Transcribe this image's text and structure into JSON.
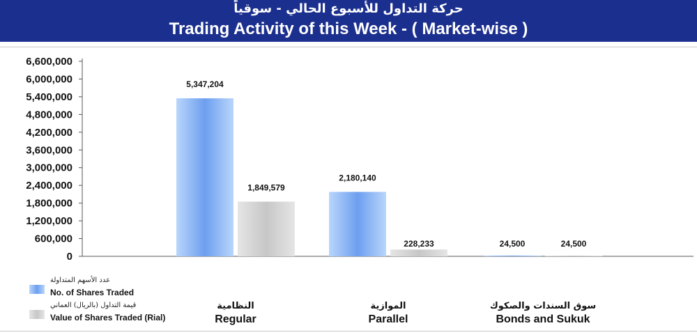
{
  "header": {
    "title_ar": "حركة التداول للأسبوع الحالي - سوقياً",
    "title_en": "Trading Activity of this Week - ( Market-wise )"
  },
  "chart_data": {
    "type": "bar",
    "categories": [
      "Regular",
      "Parallel",
      "Bonds and Sukuk"
    ],
    "categories_ar": [
      "النظامية",
      "الموازية",
      "سوق السندات والصكوك"
    ],
    "series": [
      {
        "name": "No. of Shares Traded",
        "name_ar": "عدد الأسهم المتداولة",
        "values": [
          5347204,
          2180140,
          24500
        ],
        "labels": [
          "5,347,204",
          "2,180,140",
          "24,500"
        ],
        "color": "#7eaef0"
      },
      {
        "name": "Value of Shares Traded (Rial)",
        "name_ar": "قيمة التداول (بالريال) العماني",
        "values": [
          1849579,
          228233,
          24500
        ],
        "labels": [
          "1,849,579",
          "228,233",
          "24,500"
        ],
        "color": "#cfd0cf"
      }
    ],
    "ylim": [
      0,
      6600000
    ],
    "yticks": [
      0,
      600000,
      1200000,
      1800000,
      2400000,
      3000000,
      3600000,
      4200000,
      4800000,
      5400000,
      6000000,
      6600000
    ],
    "ytick_labels": [
      "0",
      "600,000",
      "1,200,000",
      "1,800,000",
      "2,400,000",
      "3,000,000",
      "3,600,000",
      "4,200,000",
      "4,800,000",
      "5,400,000",
      "6,000,000",
      "6,600,000"
    ],
    "legend_position": "bottom-left",
    "grid": false
  }
}
